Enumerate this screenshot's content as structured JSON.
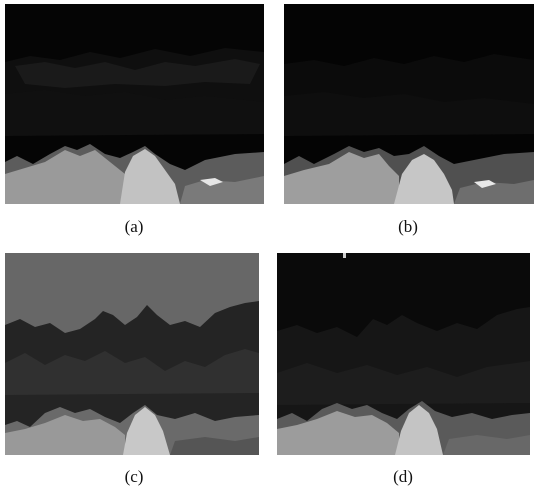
{
  "figure": {
    "panels": [
      {
        "id": "a",
        "label": "(a)"
      },
      {
        "id": "b",
        "label": "(b)"
      },
      {
        "id": "c",
        "label": "(c)"
      },
      {
        "id": "d",
        "label": "(d)"
      }
    ]
  }
}
